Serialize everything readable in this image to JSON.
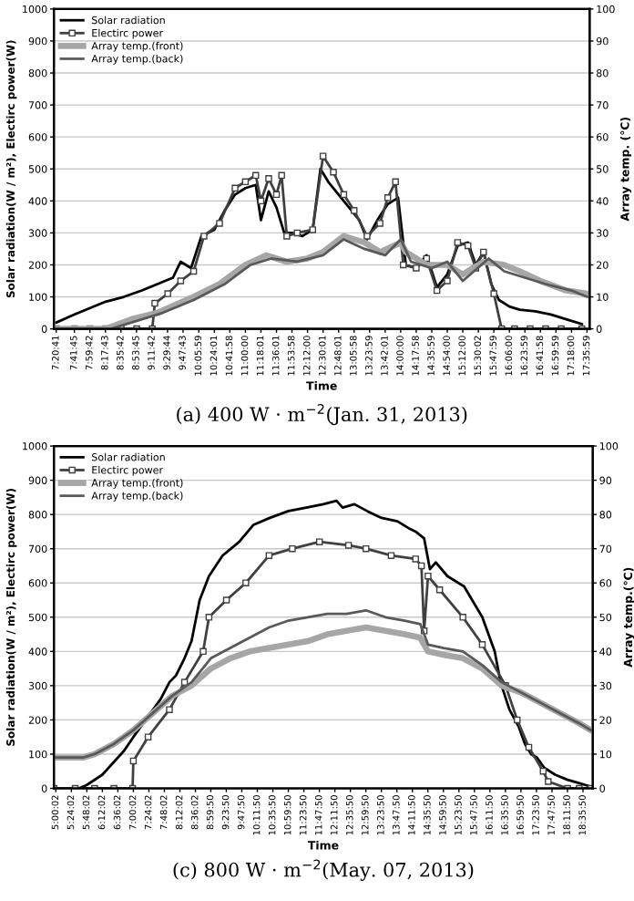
{
  "chart_data": [
    {
      "type": "line",
      "xlabel": "Time",
      "ylabel": "Solar radiation(W / m²), Electirc power(W)",
      "y2label": "Array temp. (℃)",
      "annotations": [
        "(a) 400 W · m$^{−2}$(Jan. 31, 2013)"
      ],
      "xlim": [
        7.3,
        17.65
      ],
      "ylim": [
        0,
        1000
      ],
      "yticks": [
        0,
        100,
        200,
        300,
        400,
        500,
        600,
        700,
        800,
        900,
        1000
      ],
      "y2lim": [
        0,
        100
      ],
      "y2ticks": [
        0,
        10,
        20,
        30,
        40,
        50,
        60,
        70,
        80,
        90,
        100
      ],
      "xticks": [
        {
          "value": 7.34472,
          "label": "7:20:41"
        },
        {
          "value": 7.69583,
          "label": "7:41:45"
        },
        {
          "value": 7.995,
          "label": "7:59:42"
        },
        {
          "value": 8.29528,
          "label": "8:17:43"
        },
        {
          "value": 8.595,
          "label": "8:35:42"
        },
        {
          "value": 8.89583,
          "label": "8:53:45"
        },
        {
          "value": 9.195,
          "label": "9:11:42"
        },
        {
          "value": 9.49556,
          "label": "9:29:44"
        },
        {
          "value": 9.79528,
          "label": "9:47:43"
        },
        {
          "value": 10.09972,
          "label": "10:05:59"
        },
        {
          "value": 10.40028,
          "label": "10:24:01"
        },
        {
          "value": 10.69944,
          "label": "10:41:58"
        },
        {
          "value": 11.0,
          "label": "11:00:00"
        },
        {
          "value": 11.30028,
          "label": "11:18:01"
        },
        {
          "value": 11.60028,
          "label": "11:36:01"
        },
        {
          "value": 11.89944,
          "label": "11:53:58"
        },
        {
          "value": 12.2,
          "label": "12:12:00"
        },
        {
          "value": 12.50028,
          "label": "12:30:01"
        },
        {
          "value": 12.80028,
          "label": "12:48:01"
        },
        {
          "value": 13.09944,
          "label": "13:05:58"
        },
        {
          "value": 13.39972,
          "label": "13:23:59"
        },
        {
          "value": 13.70028,
          "label": "13:42:01"
        },
        {
          "value": 14.0,
          "label": "14:00:00"
        },
        {
          "value": 14.29944,
          "label": "14:17:58"
        },
        {
          "value": 14.59972,
          "label": "14:35:59"
        },
        {
          "value": 14.9,
          "label": "14:54:00"
        },
        {
          "value": 15.2,
          "label": "15:12:00"
        },
        {
          "value": 15.50056,
          "label": "15:30:02"
        },
        {
          "value": 15.79972,
          "label": "15:47:59"
        },
        {
          "value": 16.1,
          "label": "16:06:00"
        },
        {
          "value": 16.39972,
          "label": "16:23:59"
        },
        {
          "value": 16.69944,
          "label": "16:41:58"
        },
        {
          "value": 16.99972,
          "label": "16:59:59"
        },
        {
          "value": 17.3,
          "label": "17:18:00"
        },
        {
          "value": 17.59972,
          "label": "17:35:59"
        }
      ],
      "grid": "y",
      "legend": "top left",
      "series": [
        {
          "name": "Solar radiation",
          "color": "#000000",
          "marker": "none",
          "x": [
            7.35,
            7.7,
            8.0,
            8.3,
            8.65,
            9.0,
            9.3,
            9.6,
            9.75,
            9.95,
            10.15,
            10.4,
            10.6,
            10.8,
            11.0,
            11.2,
            11.3,
            11.45,
            11.6,
            11.75,
            11.9,
            12.1,
            12.3,
            12.45,
            12.6,
            12.8,
            13.0,
            13.2,
            13.35,
            13.55,
            13.75,
            13.95,
            14.1,
            14.3,
            14.5,
            14.7,
            14.9,
            15.1,
            15.3,
            15.45,
            15.6,
            15.75,
            15.9,
            16.1,
            16.3,
            16.6,
            16.9,
            17.2,
            17.5
          ],
          "values": [
            20,
            45,
            65,
            85,
            100,
            120,
            140,
            160,
            210,
            190,
            290,
            310,
            370,
            420,
            440,
            450,
            340,
            430,
            380,
            300,
            300,
            290,
            310,
            500,
            460,
            420,
            380,
            340,
            280,
            340,
            390,
            410,
            200,
            190,
            230,
            130,
            170,
            260,
            270,
            200,
            240,
            140,
            90,
            70,
            60,
            55,
            45,
            30,
            15
          ]
        },
        {
          "name": "Electirc power",
          "color": "#404040",
          "marker": "square",
          "x": [
            7.35,
            7.7,
            8.0,
            8.3,
            8.6,
            8.9,
            9.2,
            9.25,
            9.5,
            9.75,
            10.0,
            10.2,
            10.5,
            10.8,
            11.0,
            11.2,
            11.3,
            11.45,
            11.6,
            11.7,
            11.8,
            12.0,
            12.3,
            12.5,
            12.7,
            12.9,
            13.1,
            13.35,
            13.6,
            13.75,
            13.9,
            14.05,
            14.3,
            14.5,
            14.7,
            14.9,
            15.1,
            15.3,
            15.45,
            15.6,
            15.8,
            15.95,
            16.2,
            16.5,
            16.8,
            17.1,
            17.5
          ],
          "values": [
            0,
            0,
            0,
            0,
            0,
            0,
            0,
            80,
            110,
            150,
            180,
            290,
            330,
            440,
            460,
            480,
            400,
            470,
            420,
            480,
            290,
            300,
            310,
            540,
            490,
            420,
            370,
            290,
            330,
            410,
            460,
            200,
            190,
            220,
            120,
            150,
            270,
            260,
            190,
            240,
            110,
            0,
            0,
            0,
            0,
            0,
            0
          ]
        },
        {
          "name": "Array temp.(front)",
          "color": "#a6a6a6",
          "marker": "none",
          "axis": "y2",
          "x": [
            7.35,
            8.3,
            8.8,
            9.3,
            10.0,
            10.5,
            11.0,
            11.4,
            11.8,
            12.2,
            12.5,
            12.9,
            13.3,
            13.6,
            14.0,
            14.1,
            14.5,
            14.9,
            15.2,
            15.6,
            16.0,
            16.3,
            16.7,
            17.2,
            17.6
          ],
          "values": [
            0,
            0,
            3,
            5,
            10,
            14,
            20,
            23,
            21,
            22,
            24,
            29,
            27,
            24,
            27,
            24,
            20,
            20,
            17,
            21,
            20,
            18,
            15,
            12,
            11
          ]
        },
        {
          "name": "Array temp.(back)",
          "color": "#595959",
          "marker": "none",
          "axis": "y2",
          "x": [
            7.35,
            8.4,
            8.8,
            9.4,
            10.0,
            10.6,
            11.1,
            11.5,
            12.0,
            12.5,
            12.9,
            13.3,
            13.7,
            14.0,
            14.2,
            14.6,
            14.9,
            15.2,
            15.7,
            16.0,
            16.4,
            16.8,
            17.3,
            17.6
          ],
          "values": [
            0,
            0,
            2,
            5,
            9,
            14,
            20,
            22,
            21,
            23,
            28,
            25,
            23,
            28,
            21,
            19,
            21,
            15,
            22,
            18,
            16,
            14,
            12,
            10
          ]
        }
      ]
    },
    {
      "type": "line",
      "xlabel": "Time",
      "ylabel": "Solar radiation(W / m²), Electirc power(W)",
      "y2label": "Array temp.(℃)",
      "annotations": [
        "(c) 800 W · m$^{−2}$(May. 07, 2013)"
      ],
      "xlim": [
        4.95,
        18.85
      ],
      "ylim": [
        0,
        1000
      ],
      "yticks": [
        0,
        100,
        200,
        300,
        400,
        500,
        600,
        700,
        800,
        900,
        1000
      ],
      "y2lim": [
        0,
        100
      ],
      "y2ticks": [
        0,
        10,
        20,
        30,
        40,
        50,
        60,
        70,
        80,
        90,
        100
      ],
      "xticks": [
        {
          "value": 5.00056,
          "label": "5:00:02"
        },
        {
          "value": 5.40056,
          "label": "5:24:02"
        },
        {
          "value": 5.80056,
          "label": "5:48:02"
        },
        {
          "value": 6.20056,
          "label": "6:12:02"
        },
        {
          "value": 6.60056,
          "label": "6:36:02"
        },
        {
          "value": 7.00056,
          "label": "7:00:02"
        },
        {
          "value": 7.40056,
          "label": "7:24:02"
        },
        {
          "value": 7.80056,
          "label": "7:48:02"
        },
        {
          "value": 8.20056,
          "label": "8:12:02"
        },
        {
          "value": 8.60056,
          "label": "8:36:02"
        },
        {
          "value": 8.99722,
          "label": "8:59:50"
        },
        {
          "value": 9.39722,
          "label": "9:23:50"
        },
        {
          "value": 9.79722,
          "label": "9:47:50"
        },
        {
          "value": 10.19722,
          "label": "10:11:50"
        },
        {
          "value": 10.59722,
          "label": "10:35:50"
        },
        {
          "value": 10.99722,
          "label": "10:59:50"
        },
        {
          "value": 11.39722,
          "label": "11:23:50"
        },
        {
          "value": 11.79722,
          "label": "11:47:50"
        },
        {
          "value": 12.19722,
          "label": "12:11:50"
        },
        {
          "value": 12.59722,
          "label": "12:35:50"
        },
        {
          "value": 12.99722,
          "label": "12:59:50"
        },
        {
          "value": 13.39722,
          "label": "13:23:50"
        },
        {
          "value": 13.79722,
          "label": "13:47:50"
        },
        {
          "value": 14.19722,
          "label": "14:11:50"
        },
        {
          "value": 14.59722,
          "label": "14:35:50"
        },
        {
          "value": 14.99722,
          "label": "14:59:50"
        },
        {
          "value": 15.39722,
          "label": "15:23:50"
        },
        {
          "value": 15.79722,
          "label": "15:47:50"
        },
        {
          "value": 16.19722,
          "label": "16:11:50"
        },
        {
          "value": 16.59722,
          "label": "16:35:50"
        },
        {
          "value": 16.99722,
          "label": "16:59:50"
        },
        {
          "value": 17.39722,
          "label": "17:23:50"
        },
        {
          "value": 17.79722,
          "label": "17:47:50"
        },
        {
          "value": 18.19722,
          "label": "18:11:50"
        },
        {
          "value": 18.59722,
          "label": "18:35:50"
        }
      ],
      "grid": "y",
      "legend": "top left",
      "series": [
        {
          "name": "Solar radiation",
          "color": "#000000",
          "marker": "none",
          "x": [
            4.95,
            5.6,
            5.8,
            6.2,
            6.76,
            7.0,
            7.38,
            7.7,
            7.93,
            8.1,
            8.32,
            8.5,
            8.71,
            8.95,
            9.3,
            9.73,
            10.1,
            10.52,
            11.0,
            11.46,
            11.9,
            12.24,
            12.4,
            12.7,
            13.03,
            13.4,
            13.81,
            14.1,
            14.28,
            14.5,
            14.65,
            14.8,
            15.1,
            15.53,
            16.0,
            16.32,
            16.47,
            16.7,
            16.94,
            17.1,
            17.26,
            17.41,
            17.6,
            17.88,
            18.2,
            18.51,
            18.8
          ],
          "values": [
            0,
            0,
            10,
            40,
            110,
            150,
            210,
            260,
            310,
            330,
            380,
            430,
            550,
            620,
            680,
            720,
            770,
            790,
            810,
            820,
            830,
            840,
            820,
            830,
            810,
            790,
            780,
            760,
            750,
            730,
            640,
            660,
            620,
            590,
            500,
            400,
            310,
            230,
            180,
            130,
            100,
            90,
            60,
            40,
            25,
            15,
            5
          ]
        },
        {
          "name": "Electirc power",
          "color": "#404040",
          "marker": "square",
          "x": [
            4.95,
            5.5,
            6.0,
            6.5,
            6.98,
            7.0,
            7.38,
            7.93,
            8.32,
            8.8,
            8.95,
            9.4,
            9.9,
            10.5,
            11.1,
            11.8,
            12.55,
            13.0,
            13.65,
            14.28,
            14.43,
            14.5,
            14.6,
            14.9,
            15.5,
            16.0,
            16.6,
            16.9,
            17.2,
            17.57,
            17.7,
            18.2,
            18.5,
            18.8
          ],
          "values": [
            0,
            0,
            0,
            0,
            0,
            80,
            150,
            230,
            310,
            400,
            500,
            550,
            600,
            680,
            700,
            720,
            710,
            700,
            680,
            670,
            650,
            460,
            620,
            580,
            500,
            420,
            300,
            200,
            120,
            50,
            20,
            0,
            0,
            0
          ]
        },
        {
          "name": "Array temp.(front)",
          "color": "#a6a6a6",
          "marker": "none",
          "axis": "y2",
          "x": [
            4.95,
            5.7,
            6.0,
            6.5,
            7.0,
            7.5,
            8.0,
            8.5,
            9.0,
            9.5,
            10.0,
            10.5,
            11.0,
            11.5,
            12.0,
            12.5,
            13.0,
            13.5,
            14.0,
            14.4,
            14.6,
            15.0,
            15.5,
            16.0,
            16.5,
            17.0,
            17.5,
            18.0,
            18.5,
            18.8
          ],
          "values": [
            9,
            9,
            10,
            13,
            17,
            22,
            27,
            30,
            35,
            38,
            40,
            41,
            42,
            43,
            45,
            46,
            47,
            46,
            45,
            44,
            40,
            39,
            38,
            35,
            30,
            28,
            25,
            22,
            19,
            17
          ]
        },
        {
          "name": "Array temp.(back)",
          "color": "#595959",
          "marker": "none",
          "axis": "y2",
          "x": [
            4.95,
            5.7,
            6.0,
            6.5,
            7.0,
            7.5,
            8.0,
            8.5,
            9.0,
            9.5,
            10.0,
            10.5,
            11.0,
            11.5,
            12.0,
            12.5,
            13.0,
            13.5,
            14.0,
            14.4,
            14.6,
            15.0,
            15.5,
            16.0,
            16.5,
            17.0,
            17.5,
            18.0,
            18.5,
            18.8
          ],
          "values": [
            9,
            9,
            10,
            13,
            17,
            22,
            27,
            31,
            38,
            41,
            44,
            47,
            49,
            50,
            51,
            51,
            52,
            50,
            49,
            48,
            42,
            41,
            40,
            36,
            31,
            28,
            25,
            22,
            19,
            17
          ]
        }
      ]
    }
  ]
}
